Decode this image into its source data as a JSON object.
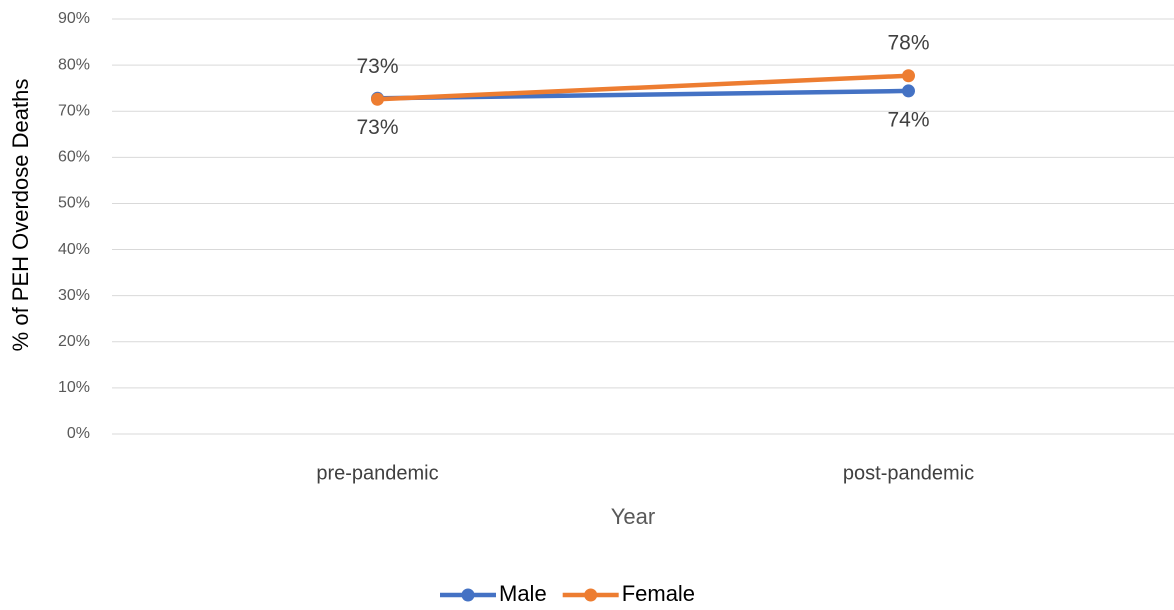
{
  "chart_data": {
    "type": "line",
    "categories": [
      "pre-pandemic",
      "post-pandemic"
    ],
    "series": [
      {
        "name": "Male",
        "color": "#4472c4",
        "values": [
          72.8,
          74.4
        ],
        "value_labels": [
          "73%",
          "74%"
        ]
      },
      {
        "name": "Female",
        "color": "#ed7d31",
        "values": [
          72.6,
          77.7
        ],
        "value_labels": [
          "73%",
          "78%"
        ]
      }
    ],
    "x_label": "Year",
    "y_label": "% of PEH Overdose Deaths",
    "ylim": [
      0,
      90
    ],
    "yticks": [
      {
        "value": 0,
        "label": "0%"
      },
      {
        "value": 10,
        "label": "10%"
      },
      {
        "value": 20,
        "label": "20%"
      },
      {
        "value": 30,
        "label": "30%"
      },
      {
        "value": 40,
        "label": "40%"
      },
      {
        "value": 50,
        "label": "50%"
      },
      {
        "value": 60,
        "label": "60%"
      },
      {
        "value": 70,
        "label": "70%"
      },
      {
        "value": 80,
        "label": "80%"
      },
      {
        "value": 90,
        "label": "90%"
      }
    ],
    "grid": true,
    "legend": "bottom"
  }
}
